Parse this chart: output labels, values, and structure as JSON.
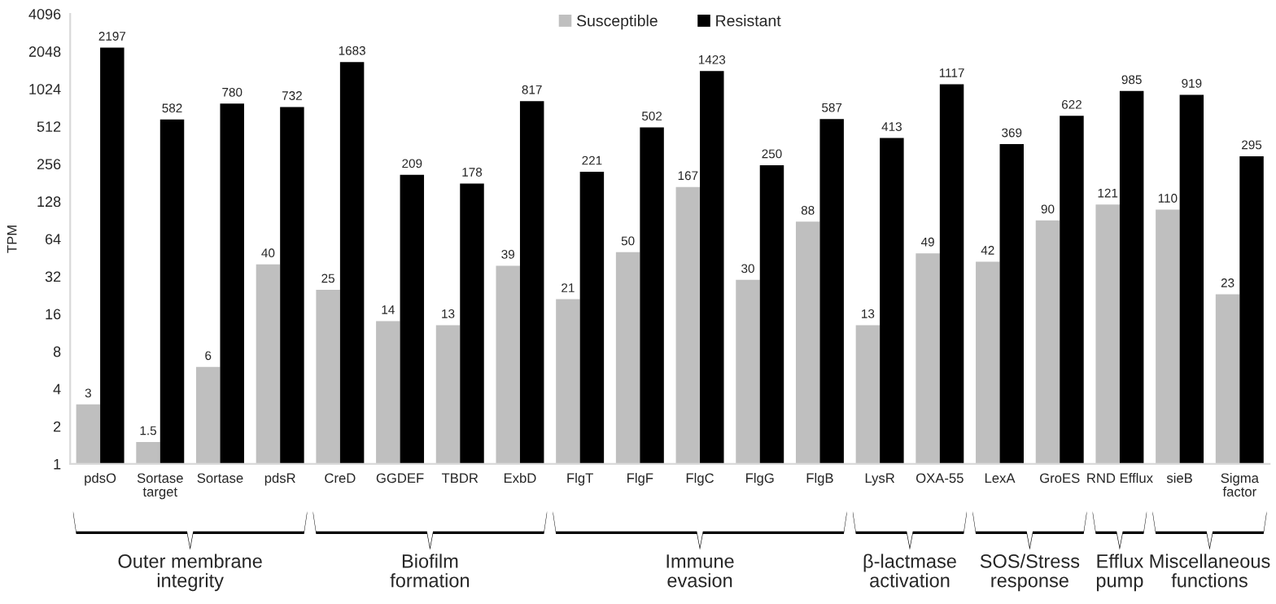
{
  "chart_data": {
    "type": "bar",
    "ylabel": "TPM",
    "categories": [
      "pdsO",
      "Sortase\ntarget",
      "Sortase",
      "pdsR",
      "CreD",
      "GGDEF",
      "TBDR",
      "ExbD",
      "FlgT",
      "FlgF",
      "FlgC",
      "FlgG",
      "FlgB",
      "LysR",
      "OXA-55",
      "LexA",
      "GroES",
      "RND Efflux",
      "sieB",
      "Sigma\nfactor"
    ],
    "series": [
      {
        "name": "Susceptible",
        "color": "#bfbfbf",
        "values": [
          3,
          1.5,
          6,
          40,
          25,
          14,
          13,
          39,
          21,
          50,
          167,
          30,
          88,
          13,
          49,
          42,
          90,
          121,
          110,
          23
        ]
      },
      {
        "name": "Resistant",
        "color": "#000000",
        "values": [
          2197,
          582,
          780,
          732,
          1683,
          209,
          178,
          817,
          221,
          502,
          1423,
          250,
          587,
          413,
          1117,
          369,
          622,
          985,
          919,
          295
        ]
      }
    ],
    "log": "y",
    "ylim": [
      1,
      4096
    ],
    "yticks": [
      1,
      2,
      4,
      8,
      16,
      32,
      64,
      128,
      256,
      512,
      1024,
      2048,
      4096
    ],
    "data_labels": true,
    "grid": false,
    "legend": "top",
    "annotations": [
      "Outer membrane\nintegrity",
      "Biofilm\nformation",
      "Immune\nevasion",
      "β-lactmase\nactivation",
      "SOS/Stress\nresponse",
      "Efflux\npump",
      "Miscellaneous\nfunctions"
    ]
  }
}
